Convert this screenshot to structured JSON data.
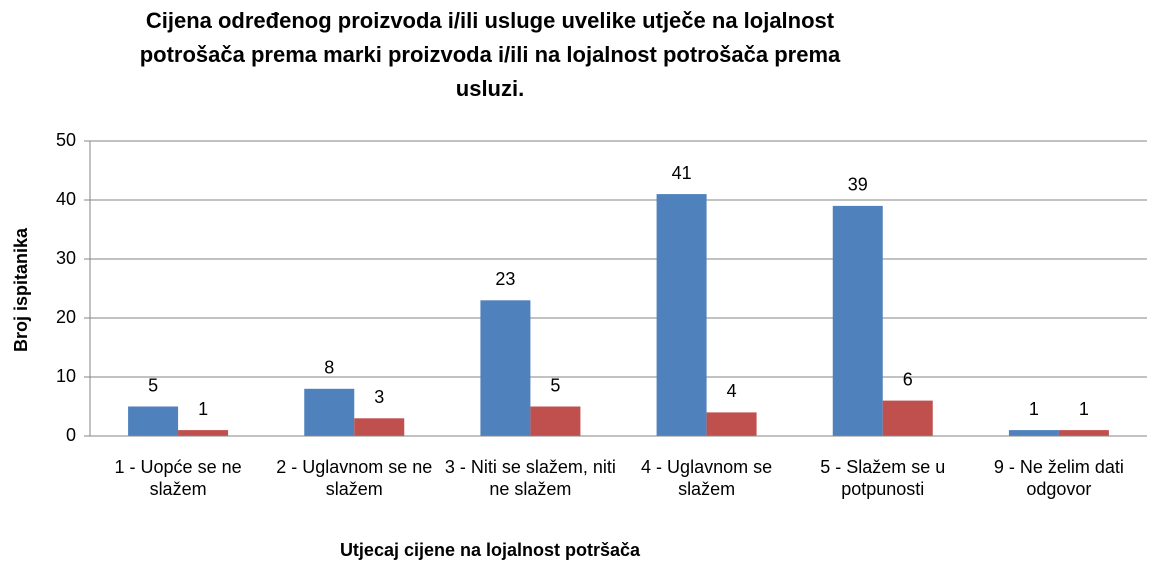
{
  "chart_data": {
    "type": "bar",
    "title": [
      "Cijena određenog proizvoda i/ili usluge uvelike utječe na lojalnost",
      "potrošača prema marki proizvoda i/ili na lojalnost potrošača prema",
      "usluzi."
    ],
    "x_label": "Utjecaj cijene na lojalnost potršača",
    "y_label": "Broj ispitanika",
    "categories": [
      "1 - Uopće se ne slažem",
      "2 - Uglavnom se ne slažem",
      "3 - Niti se slažem, niti ne slažem",
      "4 - Uglavnom se slažem",
      "5 - Slažem se u potpunosti",
      "9 - Ne želim dati odgovor"
    ],
    "series": [
      {
        "color": "#4f81bd",
        "values": [
          5,
          8,
          23,
          41,
          39,
          1
        ]
      },
      {
        "color": "#c0504d",
        "values": [
          1,
          3,
          5,
          4,
          6,
          1
        ]
      }
    ],
    "ylim": [
      0,
      50
    ],
    "yticks": [
      0,
      10,
      20,
      30,
      40,
      50
    ],
    "grid": true
  }
}
